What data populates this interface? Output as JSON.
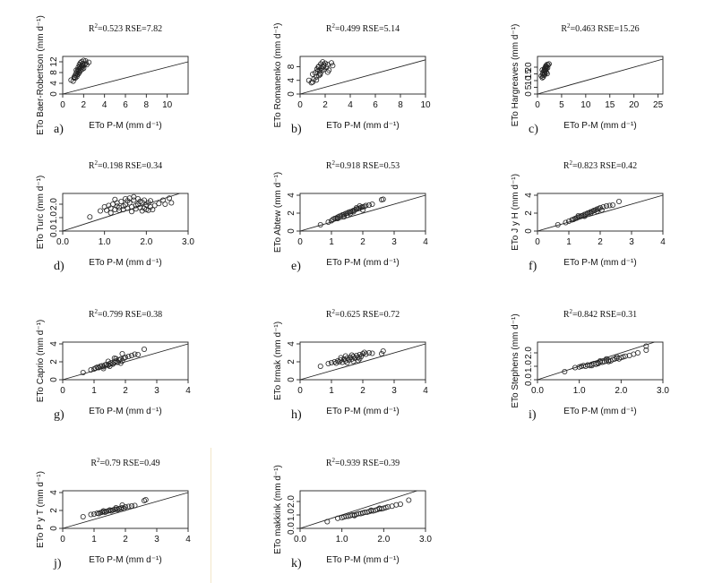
{
  "chart_data": [
    {
      "id": "a",
      "type": "scatter",
      "letter": "a)",
      "ylabel": "ETo Baer-Robertson (mm d⁻¹)",
      "xlabel": "ETo P-M (mm d⁻¹)",
      "r2": "0.523",
      "rse": "7.82",
      "r2_label": "R",
      "rse_label": "RSE=",
      "xlim": [
        0,
        12
      ],
      "ylim": [
        0,
        14
      ],
      "xticks": [
        0,
        2,
        4,
        6,
        8,
        10
      ],
      "yticks": [
        0,
        4,
        8,
        12
      ],
      "x": [
        0.8,
        1.0,
        1.1,
        1.2,
        1.3,
        1.35,
        1.4,
        1.45,
        1.5,
        1.5,
        1.55,
        1.6,
        1.6,
        1.65,
        1.7,
        1.7,
        1.75,
        1.8,
        1.8,
        1.85,
        1.9,
        1.95,
        2.0,
        2.0,
        2.1,
        2.2,
        2.3,
        2.5,
        1.2,
        1.4,
        1.6,
        1.9,
        2.2,
        1.1,
        1.3
      ],
      "y": [
        5.2,
        4.8,
        6.3,
        7.0,
        7.8,
        6.5,
        8.4,
        9.0,
        7.5,
        10.0,
        8.6,
        9.4,
        11.0,
        10.2,
        8.8,
        11.6,
        9.8,
        10.5,
        12.0,
        9.2,
        11.3,
        10.8,
        12.5,
        9.6,
        11.0,
        12.3,
        10.9,
        11.8,
        5.9,
        7.2,
        8.1,
        10.1,
        11.5,
        6.0,
        8.9
      ]
    },
    {
      "id": "b",
      "type": "scatter",
      "letter": "b)",
      "ylabel": "ETo Romanenko (mm d⁻¹)",
      "xlabel": "ETo P-M (mm d⁻¹)",
      "r2": "0.499",
      "rse": "5.14",
      "r2_label": "R",
      "rse_label": "RSE=",
      "xlim": [
        0,
        10
      ],
      "ylim": [
        0,
        11
      ],
      "xticks": [
        0,
        2,
        4,
        6,
        8,
        10
      ],
      "yticks": [
        0,
        4,
        8
      ],
      "x": [
        0.7,
        0.9,
        1.0,
        1.1,
        1.2,
        1.3,
        1.35,
        1.4,
        1.5,
        1.5,
        1.55,
        1.6,
        1.65,
        1.7,
        1.75,
        1.8,
        1.85,
        1.9,
        2.0,
        2.1,
        2.2,
        2.3,
        2.5,
        2.6,
        1.3,
        1.6,
        1.9,
        2.2,
        1.0,
        1.45
      ],
      "y": [
        4.0,
        3.3,
        5.8,
        4.4,
        6.2,
        5.0,
        7.3,
        6.6,
        5.4,
        8.1,
        7.0,
        6.1,
        8.8,
        7.6,
        6.8,
        9.4,
        8.0,
        7.2,
        9.0,
        7.8,
        8.6,
        7.0,
        9.1,
        8.3,
        4.1,
        5.7,
        8.5,
        6.4,
        3.5,
        7.9
      ]
    },
    {
      "id": "c",
      "type": "scatter",
      "letter": "c)",
      "ylabel": "ETo Hargreaves (mm d⁻¹)",
      "xlabel": "ETo P-M (mm d⁻¹)",
      "r2": "0.463",
      "rse": "15.26",
      "r2_label": "R",
      "rse_label": "RSE=",
      "xlim": [
        0,
        26
      ],
      "ylim": [
        0,
        28
      ],
      "xticks": [
        0,
        5,
        10,
        15,
        20,
        25
      ],
      "yticks": [
        0,
        5,
        10,
        15,
        20
      ],
      "x": [
        0.8,
        1.0,
        1.1,
        1.2,
        1.3,
        1.4,
        1.45,
        1.5,
        1.55,
        1.6,
        1.65,
        1.7,
        1.75,
        1.8,
        1.85,
        1.9,
        2.0,
        2.1,
        2.2,
        2.4,
        1.2,
        1.5,
        1.8,
        2.0,
        1.0
      ],
      "y": [
        13.5,
        12.2,
        15.0,
        16.4,
        14.0,
        17.2,
        18.5,
        15.6,
        19.4,
        16.8,
        20.0,
        17.8,
        21.0,
        18.8,
        16.2,
        20.5,
        22.0,
        19.6,
        21.6,
        22.4,
        12.8,
        14.6,
        19.0,
        15.2,
        17.9
      ]
    },
    {
      "id": "d",
      "type": "scatter",
      "letter": "d)",
      "ylabel": "ETo Turc (mm d⁻¹)",
      "xlabel": "ETo P-M (mm d⁻¹)",
      "r2": "0.198",
      "rse": "0.34",
      "r2_label": "R",
      "rse_label": "RSE=",
      "xlim": [
        0,
        3
      ],
      "ylim": [
        0,
        2.8
      ],
      "xticks": [
        0.0,
        1.0,
        2.0,
        3.0
      ],
      "yticks": [
        0.0,
        1.0,
        2.0
      ],
      "x": [
        0.65,
        0.9,
        1.0,
        1.05,
        1.1,
        1.15,
        1.2,
        1.25,
        1.3,
        1.3,
        1.35,
        1.4,
        1.45,
        1.5,
        1.5,
        1.55,
        1.6,
        1.6,
        1.65,
        1.7,
        1.7,
        1.75,
        1.8,
        1.8,
        1.85,
        1.9,
        1.9,
        1.95,
        2.0,
        2.0,
        2.05,
        2.1,
        2.1,
        2.2,
        2.3,
        2.4,
        2.45,
        2.55,
        2.6,
        1.15,
        1.35,
        1.55,
        1.75,
        1.95,
        2.15,
        1.25,
        1.45,
        1.65,
        1.85,
        2.05
      ],
      "y": [
        1.05,
        1.5,
        1.8,
        1.55,
        1.9,
        1.7,
        2.0,
        1.6,
        1.85,
        2.1,
        1.75,
        2.2,
        1.6,
        1.95,
        2.4,
        1.7,
        2.1,
        2.45,
        1.8,
        2.3,
        2.55,
        1.65,
        2.0,
        2.4,
        1.75,
        2.15,
        1.5,
        2.3,
        1.95,
        1.6,
        2.1,
        1.8,
        2.25,
        1.9,
        2.05,
        2.3,
        2.0,
        2.45,
        2.1,
        1.35,
        1.55,
        2.25,
        1.9,
        1.7,
        1.6,
        2.35,
        1.85,
        1.45,
        2.2,
        1.55
      ]
    },
    {
      "id": "e",
      "type": "scatter",
      "letter": "e)",
      "ylabel": "ETo Abtew (mm d⁻¹)",
      "xlabel": "ETo P-M (mm d⁻¹)",
      "r2": "0.918",
      "rse": "0.53",
      "r2_label": "R",
      "rse_label": "RSE=",
      "xlim": [
        0,
        4
      ],
      "ylim": [
        0,
        4.2
      ],
      "xticks": [
        0,
        1,
        2,
        3,
        4
      ],
      "yticks": [
        0,
        2,
        4
      ],
      "x": [
        0.65,
        0.9,
        1.0,
        1.05,
        1.1,
        1.15,
        1.2,
        1.25,
        1.3,
        1.35,
        1.4,
        1.45,
        1.5,
        1.55,
        1.6,
        1.65,
        1.7,
        1.75,
        1.8,
        1.85,
        1.9,
        1.95,
        2.0,
        2.05,
        2.1,
        2.2,
        2.3,
        2.6,
        2.65,
        1.4,
        1.6,
        1.8,
        2.0,
        1.2,
        1.5,
        1.7,
        1.9
      ],
      "y": [
        0.7,
        1.0,
        1.15,
        1.3,
        1.4,
        1.45,
        1.55,
        1.65,
        1.7,
        1.8,
        1.85,
        1.95,
        2.0,
        2.1,
        2.15,
        2.2,
        2.3,
        2.35,
        2.45,
        2.5,
        2.55,
        2.65,
        2.7,
        2.75,
        2.85,
        2.9,
        3.0,
        3.5,
        3.55,
        1.6,
        1.95,
        2.6,
        2.35,
        1.4,
        1.75,
        2.15,
        2.8
      ]
    },
    {
      "id": "f",
      "type": "scatter",
      "letter": "f)",
      "ylabel": "ETo J y H (mm d⁻¹)",
      "xlabel": "ETo P-M (mm d⁻¹)",
      "r2": "0.823",
      "rse": "0.42",
      "r2_label": "R",
      "rse_label": "RSE=",
      "xlim": [
        0,
        4
      ],
      "ylim": [
        0,
        4.2
      ],
      "xticks": [
        0,
        1,
        2,
        3,
        4
      ],
      "yticks": [
        0,
        2,
        4
      ],
      "x": [
        0.65,
        0.9,
        1.0,
        1.1,
        1.15,
        1.2,
        1.25,
        1.3,
        1.35,
        1.4,
        1.45,
        1.5,
        1.55,
        1.6,
        1.65,
        1.7,
        1.75,
        1.8,
        1.85,
        1.9,
        1.95,
        2.0,
        2.1,
        2.2,
        2.3,
        2.4,
        2.6,
        1.3,
        1.5,
        1.7,
        1.9,
        2.05
      ],
      "y": [
        0.7,
        0.95,
        1.1,
        1.25,
        1.3,
        1.4,
        1.45,
        1.55,
        1.6,
        1.7,
        1.75,
        1.85,
        1.9,
        2.0,
        2.05,
        2.15,
        2.2,
        2.3,
        2.35,
        2.45,
        2.5,
        2.6,
        2.7,
        2.8,
        2.85,
        2.9,
        3.3,
        1.7,
        1.65,
        2.0,
        2.2,
        2.35
      ]
    },
    {
      "id": "g",
      "type": "scatter",
      "letter": "g)",
      "ylabel": "ETo Caprio (mm d⁻¹)",
      "xlabel": "ETo P-M (mm d⁻¹)",
      "r2": "0.799",
      "rse": "0.38",
      "r2_label": "R",
      "rse_label": "RSE=",
      "xlim": [
        0,
        4
      ],
      "ylim": [
        0,
        4.2
      ],
      "xticks": [
        0,
        1,
        2,
        3,
        4
      ],
      "yticks": [
        0,
        2,
        4
      ],
      "x": [
        0.65,
        0.9,
        1.0,
        1.05,
        1.1,
        1.15,
        1.2,
        1.25,
        1.3,
        1.35,
        1.4,
        1.45,
        1.5,
        1.55,
        1.6,
        1.65,
        1.7,
        1.75,
        1.8,
        1.85,
        1.9,
        1.95,
        2.0,
        2.1,
        2.2,
        2.3,
        2.4,
        2.6,
        1.3,
        1.5,
        1.7,
        1.9,
        1.45,
        1.65,
        1.85
      ],
      "y": [
        0.8,
        1.1,
        1.2,
        1.3,
        1.4,
        1.35,
        1.5,
        1.55,
        1.45,
        1.65,
        1.7,
        1.6,
        1.8,
        1.9,
        1.75,
        2.0,
        2.1,
        1.95,
        2.2,
        2.3,
        2.1,
        2.4,
        2.5,
        2.6,
        2.7,
        2.85,
        2.8,
        3.4,
        1.25,
        1.5,
        2.35,
        2.9,
        2.05,
        2.4,
        1.85
      ]
    },
    {
      "id": "h",
      "type": "scatter",
      "letter": "h)",
      "ylabel": "ETo Irmak (mm d⁻¹)",
      "xlabel": "ETo P-M (mm d⁻¹)",
      "r2": "0.625",
      "rse": "0.72",
      "r2_label": "R",
      "rse_label": "RSE=",
      "xlim": [
        0,
        4
      ],
      "ylim": [
        0,
        4.2
      ],
      "xticks": [
        0,
        1,
        2,
        3,
        4
      ],
      "yticks": [
        0,
        2,
        4
      ],
      "x": [
        0.65,
        0.9,
        1.0,
        1.1,
        1.15,
        1.2,
        1.25,
        1.3,
        1.35,
        1.4,
        1.45,
        1.5,
        1.55,
        1.6,
        1.65,
        1.7,
        1.75,
        1.8,
        1.85,
        1.9,
        1.95,
        2.0,
        2.1,
        2.2,
        2.3,
        2.6,
        2.65,
        1.3,
        1.5,
        1.7,
        1.9,
        1.45,
        1.65,
        1.85,
        2.05
      ],
      "y": [
        1.5,
        1.8,
        1.9,
        2.0,
        1.85,
        2.1,
        2.0,
        2.2,
        1.95,
        2.3,
        2.1,
        2.4,
        2.2,
        2.5,
        2.3,
        2.6,
        2.4,
        2.7,
        2.5,
        2.8,
        2.6,
        2.9,
        2.85,
        3.0,
        2.95,
        2.9,
        3.2,
        2.45,
        1.9,
        2.05,
        2.35,
        2.65,
        2.75,
        2.15,
        3.05
      ]
    },
    {
      "id": "i",
      "type": "scatter",
      "letter": "i)",
      "ylabel": "ETo Stephens (mm d⁻¹)",
      "xlabel": "ETo P-M (mm d⁻¹)",
      "r2": "0.842",
      "rse": "0.31",
      "r2_label": "R",
      "rse_label": "RSE=",
      "xlim": [
        0,
        3
      ],
      "ylim": [
        0,
        2.8
      ],
      "xticks": [
        0.0,
        1.0,
        2.0,
        3.0
      ],
      "yticks": [
        0.0,
        1.0,
        2.0
      ],
      "x": [
        0.65,
        0.9,
        1.0,
        1.05,
        1.1,
        1.15,
        1.2,
        1.25,
        1.3,
        1.35,
        1.4,
        1.45,
        1.5,
        1.55,
        1.6,
        1.65,
        1.7,
        1.75,
        1.8,
        1.85,
        1.9,
        1.95,
        2.0,
        2.05,
        2.1,
        2.2,
        2.3,
        2.4,
        2.6,
        2.6,
        1.3,
        1.5,
        1.7,
        1.9,
        1.45,
        1.65
      ],
      "y": [
        0.6,
        0.9,
        0.95,
        1.0,
        1.05,
        1.0,
        1.1,
        1.05,
        1.15,
        1.2,
        1.15,
        1.25,
        1.3,
        1.3,
        1.35,
        1.4,
        1.45,
        1.4,
        1.5,
        1.55,
        1.6,
        1.55,
        1.65,
        1.7,
        1.75,
        1.8,
        1.9,
        2.0,
        2.2,
        2.5,
        1.05,
        1.4,
        1.35,
        1.7,
        1.2,
        1.55
      ]
    },
    {
      "id": "j",
      "type": "scatter",
      "letter": "j)",
      "ylabel": "ETo P y T (mm d⁻¹)",
      "xlabel": "ETo P-M (mm d⁻¹)",
      "r2": "0.79",
      "rse": "0.49",
      "r2_label": "R",
      "rse_label": "RSE=",
      "xlim": [
        0,
        4
      ],
      "ylim": [
        0,
        4.2
      ],
      "xticks": [
        0,
        1,
        2,
        3,
        4
      ],
      "yticks": [
        0,
        2,
        4
      ],
      "x": [
        0.65,
        0.9,
        1.0,
        1.1,
        1.15,
        1.2,
        1.25,
        1.3,
        1.35,
        1.4,
        1.45,
        1.5,
        1.55,
        1.6,
        1.65,
        1.7,
        1.75,
        1.8,
        1.85,
        1.9,
        1.95,
        2.0,
        2.1,
        2.2,
        2.3,
        2.6,
        2.65,
        1.3,
        1.5,
        1.7,
        1.9
      ],
      "y": [
        1.3,
        1.55,
        1.6,
        1.7,
        1.65,
        1.75,
        1.8,
        1.85,
        1.8,
        1.9,
        1.95,
        2.0,
        1.95,
        2.05,
        2.1,
        2.15,
        2.1,
        2.2,
        2.25,
        2.3,
        2.2,
        2.4,
        2.45,
        2.5,
        2.55,
        3.1,
        3.2,
        1.95,
        2.05,
        2.3,
        2.6
      ]
    },
    {
      "id": "k",
      "type": "scatter",
      "letter": "k)",
      "ylabel": "ETo makkink (mm d⁻¹)",
      "xlabel": "ETo P-M (mm d⁻¹)",
      "r2": "0.939",
      "rse": "0.39",
      "r2_label": "R",
      "rse_label": "RSE=",
      "xlim": [
        0,
        3
      ],
      "ylim": [
        0,
        2.8
      ],
      "xticks": [
        0.0,
        1.0,
        2.0,
        3.0
      ],
      "yticks": [
        0.0,
        1.0,
        2.0
      ],
      "x": [
        0.65,
        0.9,
        1.0,
        1.05,
        1.1,
        1.15,
        1.2,
        1.25,
        1.3,
        1.35,
        1.4,
        1.45,
        1.5,
        1.55,
        1.6,
        1.65,
        1.7,
        1.75,
        1.8,
        1.85,
        1.9,
        1.95,
        2.0,
        2.05,
        2.1,
        2.2,
        2.3,
        2.4,
        2.6,
        1.3,
        1.5,
        1.7,
        1.9
      ],
      "y": [
        0.5,
        0.75,
        0.8,
        0.85,
        0.9,
        0.9,
        0.95,
        1.0,
        1.0,
        1.05,
        1.1,
        1.1,
        1.15,
        1.2,
        1.2,
        1.25,
        1.3,
        1.3,
        1.35,
        1.4,
        1.45,
        1.45,
        1.5,
        1.55,
        1.6,
        1.65,
        1.75,
        1.8,
        2.1,
        0.95,
        1.15,
        1.35,
        1.5
      ]
    }
  ]
}
